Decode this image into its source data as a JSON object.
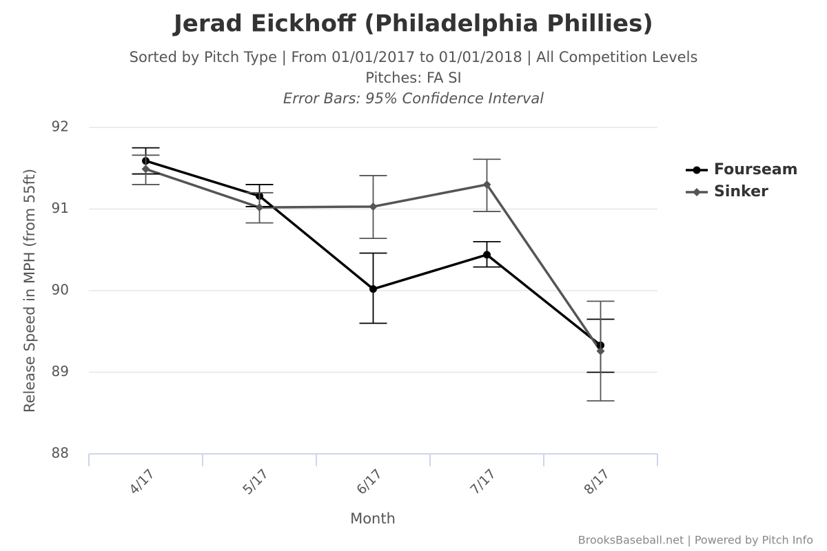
{
  "chart_data": {
    "type": "line",
    "title": "Jerad Eickhoff (Philadelphia Phillies)",
    "subtitle": [
      "Sorted by Pitch Type | From 01/01/2017 to 01/01/2018 | All Competition Levels",
      "Pitches: FA SI"
    ],
    "note": "Error Bars: 95% Confidence Interval",
    "x_label": "Month",
    "y_label": "Release Speed in MPH (from 55ft)",
    "credit": "BrooksBaseball.net | Powered by Pitch Info",
    "categories": [
      "4/17",
      "5/17",
      "6/17",
      "7/17",
      "8/17"
    ],
    "series": [
      {
        "name": "Fourseam",
        "color": "#000000",
        "marker": "circle",
        "values": [
          91.59,
          91.16,
          90.02,
          90.44,
          89.33
        ],
        "error_low": [
          91.43,
          91.03,
          89.6,
          90.29,
          89.0
        ],
        "error_high": [
          91.75,
          91.3,
          90.46,
          90.6,
          89.65
        ]
      },
      {
        "name": "Sinker",
        "color": "#555555",
        "marker": "diamond",
        "values": [
          91.49,
          91.02,
          91.03,
          91.3,
          89.26
        ],
        "error_low": [
          91.3,
          90.83,
          90.64,
          90.97,
          88.65
        ],
        "error_high": [
          91.66,
          91.2,
          91.41,
          91.61,
          89.87
        ]
      }
    ],
    "ylim": [
      88,
      92
    ],
    "yticks": [
      88,
      89,
      90,
      91,
      92
    ],
    "grid": true,
    "legend": "right"
  }
}
